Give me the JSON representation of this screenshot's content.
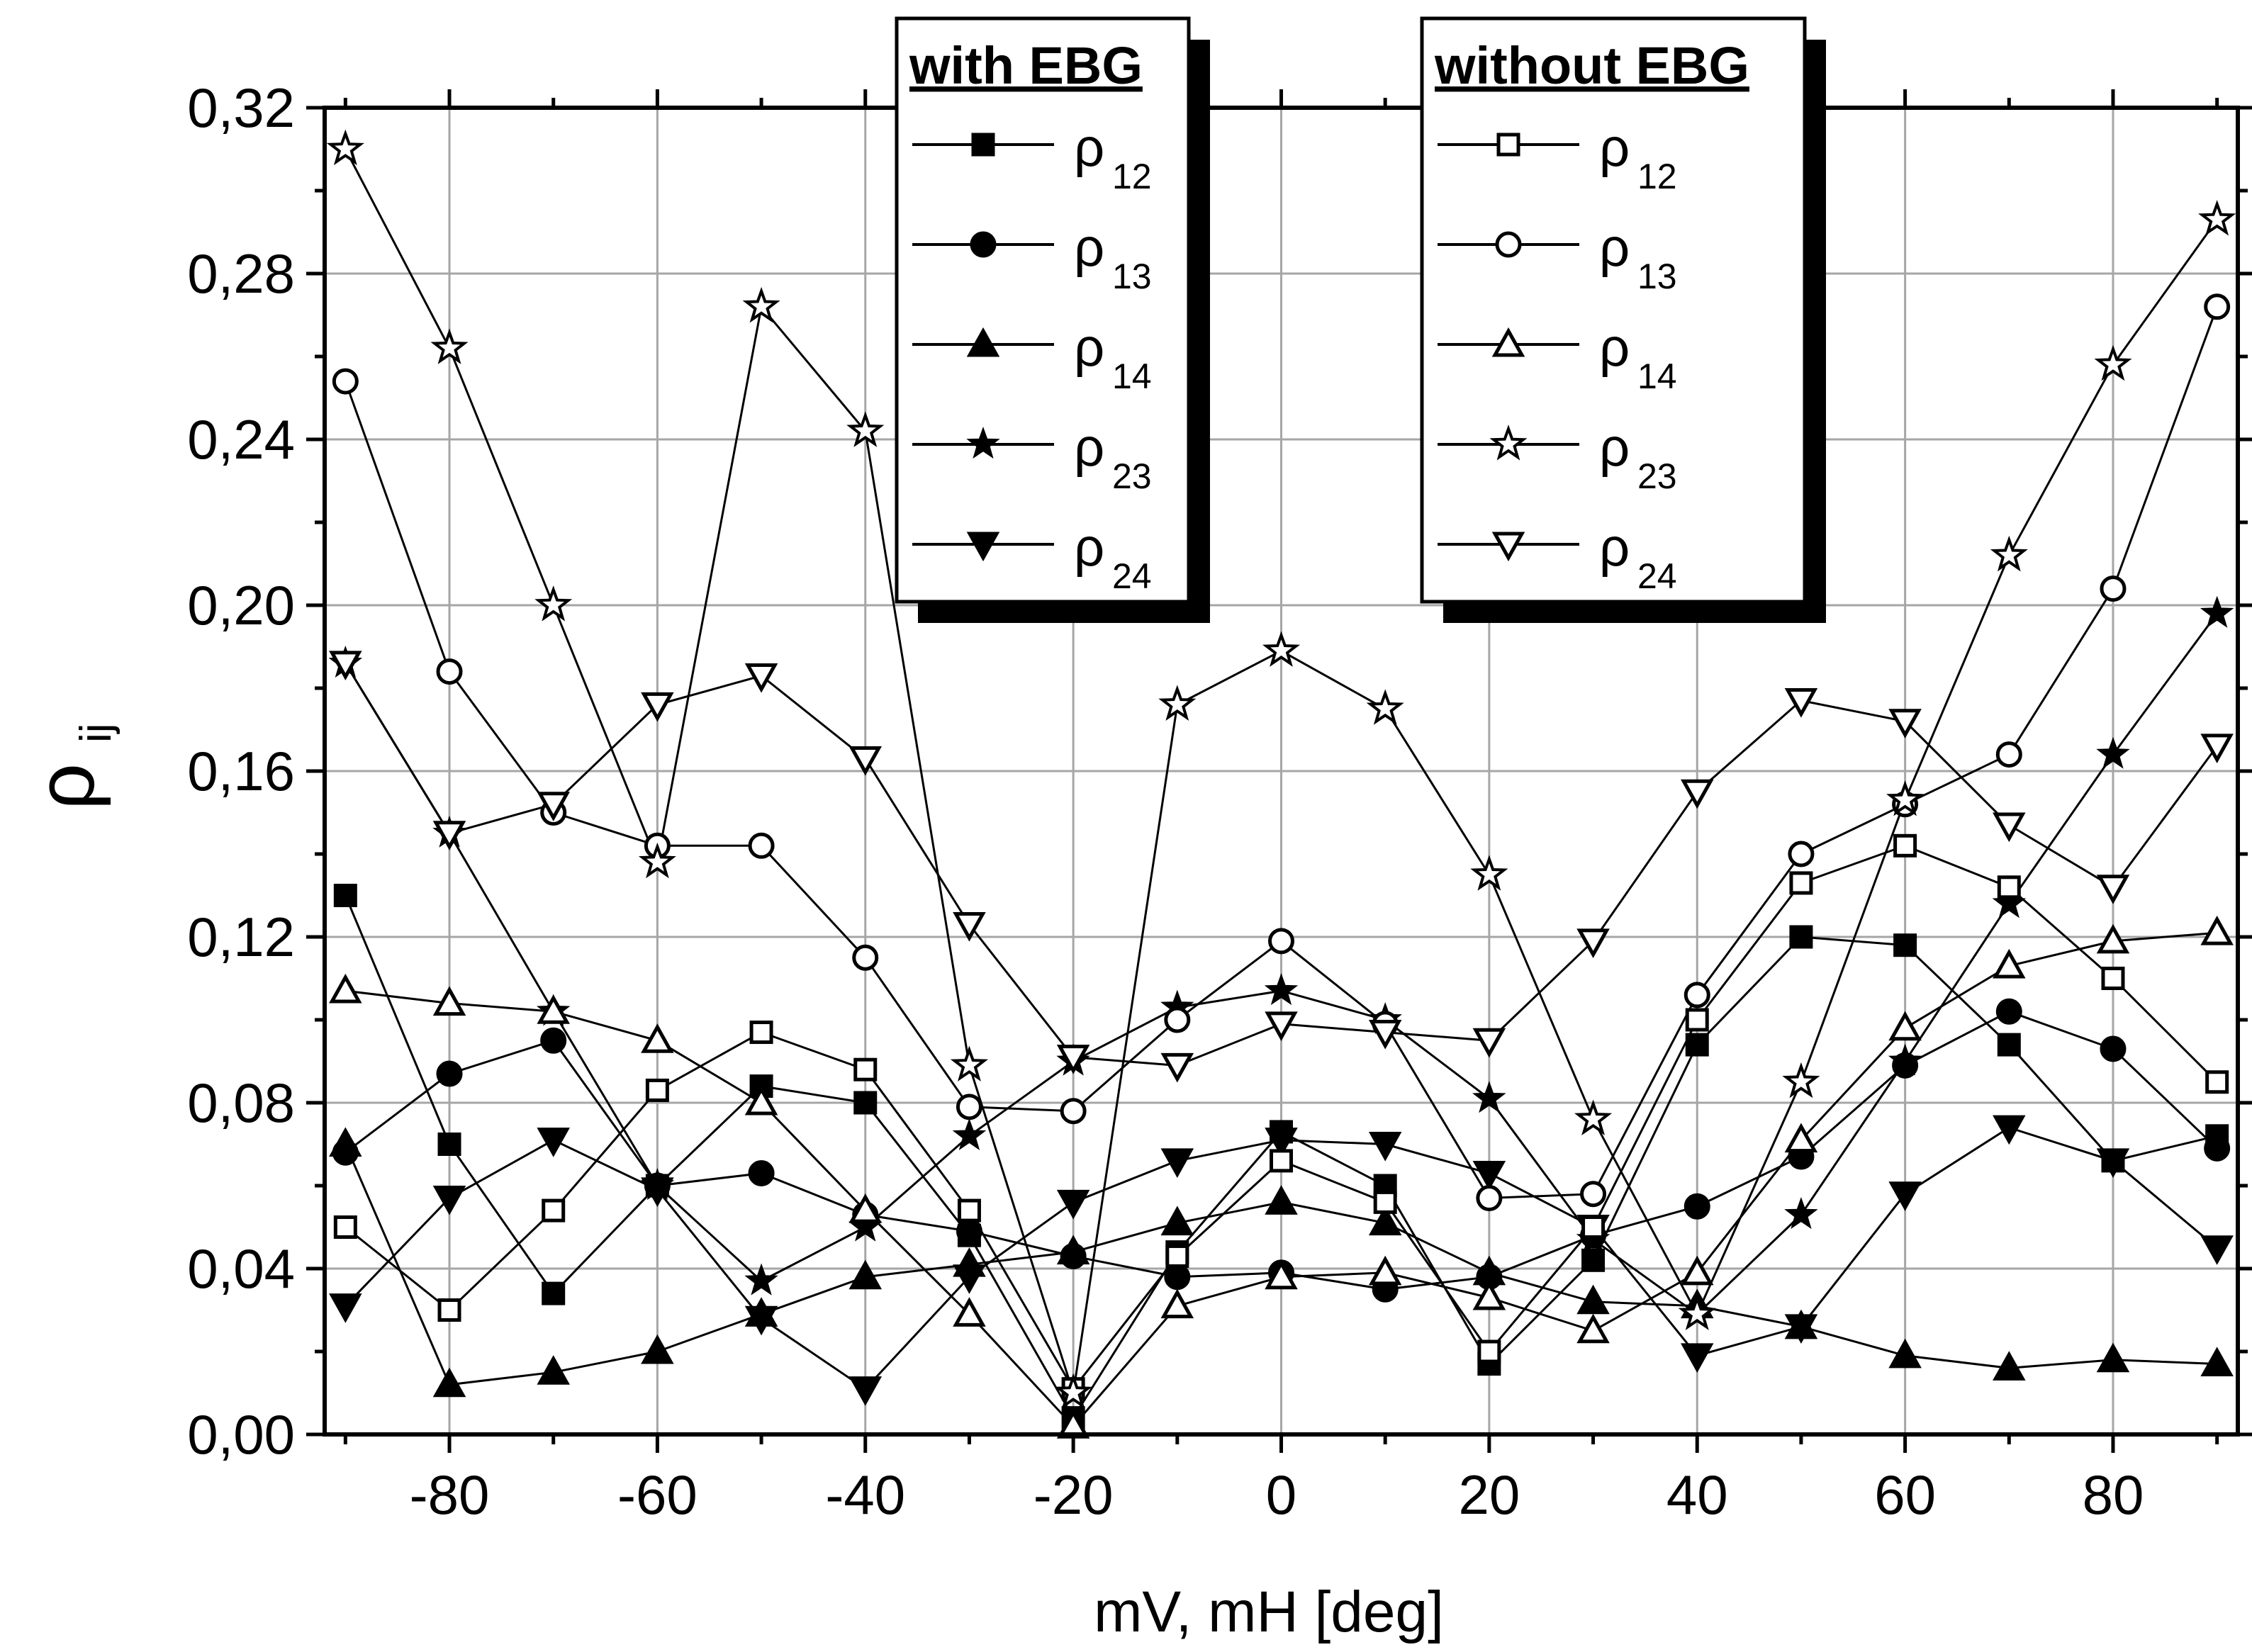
{
  "chart_data": {
    "type": "line",
    "title": "",
    "xlabel": "mV, mH [deg]",
    "ylabel": {
      "main": "ρ",
      "sub": "ij"
    },
    "xlim": [
      -92,
      92
    ],
    "ylim": [
      0,
      0.32
    ],
    "x_ticks": [
      -80,
      -60,
      -40,
      -20,
      0,
      20,
      40,
      60,
      80
    ],
    "x_tick_labels": [
      "-80",
      "-60",
      "-40",
      "-20",
      "0",
      "20",
      "40",
      "60",
      "80"
    ],
    "y_ticks": [
      0,
      0.04,
      0.08,
      0.12,
      0.16,
      0.2,
      0.24,
      0.28,
      0.32
    ],
    "y_tick_labels": [
      "0,00",
      "0,04",
      "0,08",
      "0,12",
      "0,16",
      "0,20",
      "0,24",
      "0,28",
      "0,32"
    ],
    "grid": true,
    "x": [
      -90,
      -80,
      -70,
      -60,
      -50,
      -40,
      -30,
      -20,
      -10,
      0,
      10,
      20,
      30,
      40,
      50,
      60,
      70,
      80,
      90
    ],
    "legends": [
      {
        "title": "with EBG",
        "position": "top-center",
        "entries": [
          "s_w12",
          "s_w13",
          "s_w14",
          "s_w23",
          "s_w24"
        ]
      },
      {
        "title": "without EBG",
        "position": "top-right",
        "entries": [
          "s_o12",
          "s_o13",
          "s_o14",
          "s_o23",
          "s_o24"
        ]
      }
    ],
    "series": [
      {
        "id": "s_w12",
        "name": "ρ",
        "sub": "12",
        "group": "with EBG",
        "marker": "square",
        "filled": true,
        "values": [
          0.13,
          0.07,
          0.034,
          0.06,
          0.084,
          0.08,
          0.048,
          0.004,
          0.044,
          0.073,
          0.06,
          0.017,
          0.042,
          0.094,
          0.12,
          0.118,
          0.094,
          0.066,
          0.072
        ]
      },
      {
        "id": "s_w13",
        "name": "ρ",
        "sub": "13",
        "group": "with EBG",
        "marker": "circle",
        "filled": true,
        "values": [
          0.068,
          0.087,
          0.095,
          0.06,
          0.063,
          0.053,
          0.049,
          0.043,
          0.038,
          0.039,
          0.035,
          0.038,
          0.048,
          0.055,
          0.067,
          0.089,
          0.102,
          0.093,
          0.069
        ]
      },
      {
        "id": "s_w14",
        "name": "ρ",
        "sub": "14",
        "group": "with EBG",
        "marker": "triangle-up",
        "filled": true,
        "values": [
          0.07,
          0.012,
          0.015,
          0.02,
          0.029,
          0.038,
          0.041,
          0.044,
          0.051,
          0.056,
          0.051,
          0.039,
          0.032,
          0.031,
          0.026,
          0.019,
          0.016,
          0.018,
          0.017
        ]
      },
      {
        "id": "s_w23",
        "name": "ρ",
        "sub": "23",
        "group": "with EBG",
        "marker": "star",
        "filled": true,
        "values": [
          0.186,
          0.145,
          0.102,
          0.06,
          0.037,
          0.05,
          0.072,
          0.09,
          0.103,
          0.107,
          0.1,
          0.081,
          0.047,
          0.029,
          0.053,
          0.09,
          0.128,
          0.164,
          0.198
        ]
      },
      {
        "id": "s_w24",
        "name": "ρ",
        "sub": "24",
        "group": "with EBG",
        "marker": "triangle-down",
        "filled": true,
        "values": [
          0.031,
          0.057,
          0.071,
          0.059,
          0.028,
          0.011,
          0.038,
          0.056,
          0.066,
          0.071,
          0.07,
          0.063,
          0.05,
          0.019,
          0.026,
          0.058,
          0.074,
          0.066,
          0.045
        ]
      },
      {
        "id": "s_o12",
        "name": "ρ",
        "sub": "12",
        "group": "without EBG",
        "marker": "square",
        "filled": false,
        "values": [
          0.05,
          0.03,
          0.054,
          0.083,
          0.097,
          0.088,
          0.054,
          0.011,
          0.043,
          0.066,
          0.056,
          0.02,
          0.05,
          0.1,
          0.133,
          0.142,
          0.132,
          0.11,
          0.085
        ]
      },
      {
        "id": "s_o13",
        "name": "ρ",
        "sub": "13",
        "group": "without EBG",
        "marker": "circle",
        "filled": false,
        "values": [
          0.254,
          0.184,
          0.15,
          0.142,
          0.142,
          0.115,
          0.079,
          0.078,
          0.1,
          0.119,
          0.099,
          0.057,
          0.058,
          0.106,
          0.14,
          0.152,
          0.164,
          0.204,
          0.272
        ]
      },
      {
        "id": "s_o14",
        "name": "ρ",
        "sub": "14",
        "group": "without EBG",
        "marker": "triangle-up",
        "filled": false,
        "values": [
          0.107,
          0.104,
          0.102,
          0.095,
          0.08,
          0.054,
          0.029,
          0.002,
          0.031,
          0.038,
          0.039,
          0.033,
          0.025,
          0.039,
          0.071,
          0.098,
          0.113,
          0.119,
          0.121
        ]
      },
      {
        "id": "s_o23",
        "name": "ρ",
        "sub": "23",
        "group": "without EBG",
        "marker": "star",
        "filled": false,
        "values": [
          0.31,
          0.262,
          0.2,
          0.138,
          0.272,
          0.242,
          0.089,
          0.01,
          0.176,
          0.189,
          0.175,
          0.135,
          0.076,
          0.029,
          0.085,
          0.153,
          0.212,
          0.258,
          0.293
        ]
      },
      {
        "id": "s_o24",
        "name": "ρ",
        "sub": "24",
        "group": "without EBG",
        "marker": "triangle-down",
        "filled": false,
        "values": [
          0.186,
          0.145,
          0.152,
          0.176,
          0.183,
          0.163,
          0.123,
          0.091,
          0.089,
          0.099,
          0.097,
          0.095,
          0.119,
          0.155,
          0.177,
          0.172,
          0.147,
          0.132,
          0.166
        ]
      }
    ]
  }
}
